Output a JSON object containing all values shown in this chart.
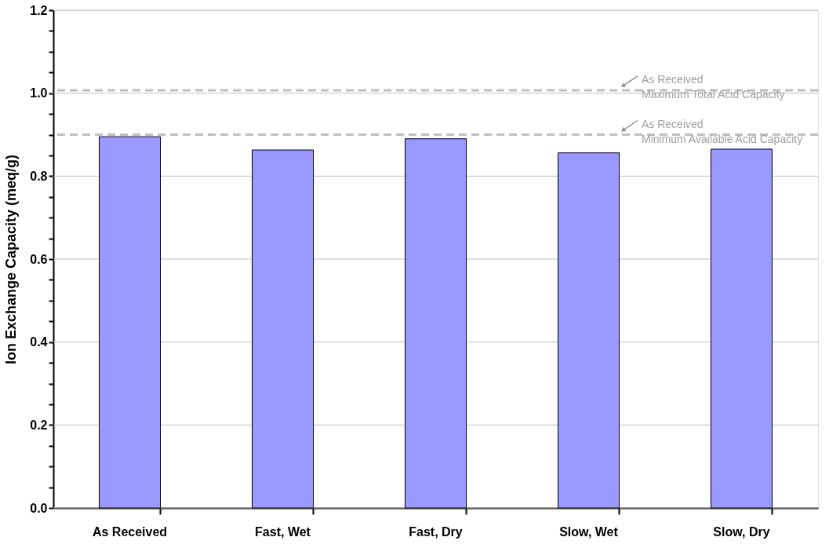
{
  "chart_data": {
    "type": "bar",
    "ylabel": "Ion Exchange Capacity (meq/g)",
    "categories": [
      "As Received",
      "Fast, Wet",
      "Fast, Dry",
      "Slow, Wet",
      "Slow, Dry"
    ],
    "values": [
      0.895,
      0.863,
      0.89,
      0.856,
      0.865
    ],
    "color": "#9999ff",
    "ylim": [
      0,
      1.2
    ],
    "yticks": [
      {
        "value": 0,
        "label": "0.0"
      },
      {
        "value": 0.05,
        "label": null
      },
      {
        "value": 0.1,
        "label": null
      },
      {
        "value": 0.15,
        "label": null
      },
      {
        "value": 0.2,
        "label": "0.2"
      },
      {
        "value": 0.25,
        "label": null
      },
      {
        "value": 0.3,
        "label": null
      },
      {
        "value": 0.35,
        "label": null
      },
      {
        "value": 0.4,
        "label": "0.4"
      },
      {
        "value": 0.45,
        "label": null
      },
      {
        "value": 0.5,
        "label": null
      },
      {
        "value": 0.55,
        "label": null
      },
      {
        "value": 0.6,
        "label": "0.6"
      },
      {
        "value": 0.65,
        "label": null
      },
      {
        "value": 0.7,
        "label": null
      },
      {
        "value": 0.75,
        "label": null
      },
      {
        "value": 0.8,
        "label": "0.8"
      },
      {
        "value": 0.85,
        "label": null
      },
      {
        "value": 0.9,
        "label": null
      },
      {
        "value": 0.95,
        "label": null
      },
      {
        "value": 1.0,
        "label": "1.0"
      },
      {
        "value": 1.05,
        "label": null
      },
      {
        "value": 1.1,
        "label": null
      },
      {
        "value": 1.15,
        "label": null
      },
      {
        "value": 1.2,
        "label": "1.2"
      }
    ],
    "grid": "y",
    "ref_lines": [
      {
        "axis": "y",
        "value": 1.007,
        "label": "As Received\nMaximum Total Acid Capacity",
        "color": "#bfbfbf",
        "line_style": "dashed"
      },
      {
        "axis": "y",
        "value": 0.9,
        "label": "As Received\nMinimum Available Acid Capacity",
        "color": "#bfbfbf",
        "line_style": "dashed"
      }
    ]
  }
}
